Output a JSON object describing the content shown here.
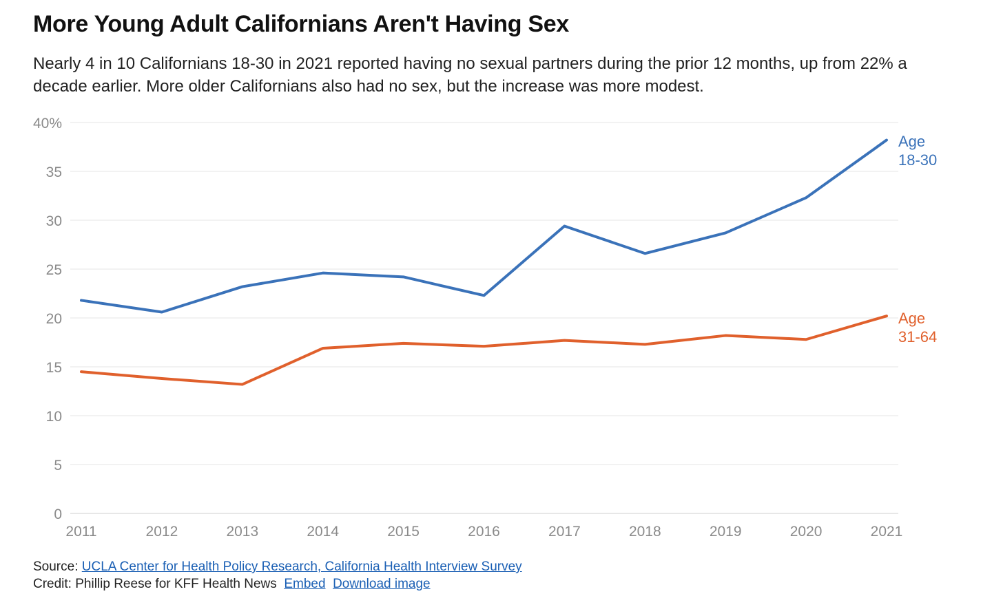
{
  "title": "More Young Adult Californians Aren't Having Sex",
  "subtitle": "Nearly 4 in 10 Californians 18-30 in 2021 reported having no sexual partners during the prior 12 months, up from 22% a decade earlier. More older Californians also had no sex, but the increase was more modest.",
  "footer": {
    "source_label": "Source:",
    "source_link": "UCLA Center for Health Policy Research, California Health Interview Survey",
    "credit": "Credit: Phillip Reese for KFF Health News",
    "embed": "Embed",
    "download": "Download image"
  },
  "chart_data": {
    "type": "line",
    "title": "More Young Adult Californians Aren't Having Sex",
    "xlabel": "",
    "ylabel": "",
    "x": [
      2011,
      2012,
      2013,
      2014,
      2015,
      2016,
      2017,
      2018,
      2019,
      2020,
      2021
    ],
    "ylim": [
      0,
      40
    ],
    "yticks": [
      0,
      5,
      10,
      15,
      20,
      25,
      30,
      35,
      40
    ],
    "ytick_labels": [
      "0",
      "5",
      "10",
      "15",
      "20",
      "25",
      "30",
      "35",
      "40%"
    ],
    "grid": true,
    "series": [
      {
        "name": "Age 18-30",
        "label_lines": [
          "Age",
          "18-30"
        ],
        "color": "#3a72b9",
        "values": [
          21.8,
          20.6,
          23.2,
          24.6,
          24.2,
          22.3,
          29.4,
          26.6,
          28.7,
          32.3,
          38.2
        ]
      },
      {
        "name": "Age 31-64",
        "label_lines": [
          "Age",
          "31-64"
        ],
        "color": "#e0602c",
        "values": [
          14.5,
          13.8,
          13.2,
          16.9,
          17.4,
          17.1,
          17.7,
          17.3,
          18.2,
          17.8,
          20.2
        ]
      }
    ]
  }
}
